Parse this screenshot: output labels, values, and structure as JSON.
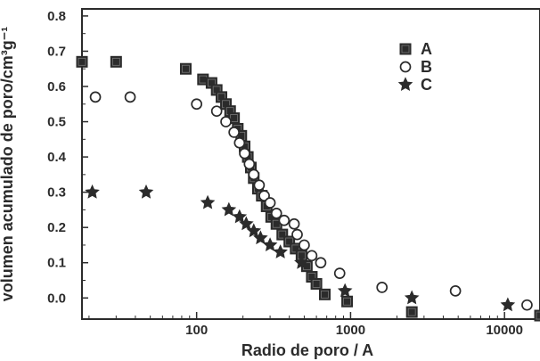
{
  "chart_data": {
    "type": "scatter",
    "xscale": "log",
    "xlim": [
      18,
      17000
    ],
    "ylim": [
      -0.06,
      0.82
    ],
    "xticks": [
      {
        "value": 100,
        "label": "100"
      },
      {
        "value": 1000,
        "label": "1000"
      },
      {
        "value": 10000,
        "label": "10000"
      }
    ],
    "yticks": [
      {
        "value": 0.0,
        "label": "0.0"
      },
      {
        "value": 0.1,
        "label": "0.1"
      },
      {
        "value": 0.2,
        "label": "0.2"
      },
      {
        "value": 0.3,
        "label": "0.3"
      },
      {
        "value": 0.4,
        "label": "0.4"
      },
      {
        "value": 0.5,
        "label": "0.5"
      },
      {
        "value": 0.6,
        "label": "0.6"
      },
      {
        "value": 0.7,
        "label": "0.7"
      },
      {
        "value": 0.8,
        "label": "0.8"
      }
    ],
    "xlabel": "Radio de poro / A",
    "ylabel": "volumen acumulado de poro/cm³g⁻¹",
    "legend_position": "top-right",
    "grid": false,
    "colors": {
      "axis": "#2b2b2b",
      "marker": "#2b2b2b",
      "marker_highlight": "#777777",
      "background": "#ffffff"
    },
    "series": [
      {
        "name": "A",
        "marker": "filled-square",
        "points": [
          [
            18,
            0.67
          ],
          [
            30,
            0.67
          ],
          [
            85,
            0.65
          ],
          [
            110,
            0.62
          ],
          [
            125,
            0.61
          ],
          [
            135,
            0.59
          ],
          [
            145,
            0.57
          ],
          [
            155,
            0.55
          ],
          [
            165,
            0.53
          ],
          [
            175,
            0.51
          ],
          [
            185,
            0.48
          ],
          [
            195,
            0.46
          ],
          [
            205,
            0.43
          ],
          [
            215,
            0.4
          ],
          [
            225,
            0.37
          ],
          [
            235,
            0.34
          ],
          [
            250,
            0.31
          ],
          [
            265,
            0.29
          ],
          [
            285,
            0.26
          ],
          [
            305,
            0.23
          ],
          [
            330,
            0.21
          ],
          [
            360,
            0.18
          ],
          [
            400,
            0.16
          ],
          [
            440,
            0.14
          ],
          [
            480,
            0.12
          ],
          [
            520,
            0.09
          ],
          [
            560,
            0.06
          ],
          [
            600,
            0.04
          ],
          [
            680,
            0.01
          ],
          [
            950,
            -0.01
          ],
          [
            2500,
            -0.04
          ],
          [
            17000,
            -0.05
          ]
        ]
      },
      {
        "name": "B",
        "marker": "open-circle",
        "points": [
          [
            22,
            0.57
          ],
          [
            37,
            0.57
          ],
          [
            100,
            0.55
          ],
          [
            135,
            0.53
          ],
          [
            155,
            0.5
          ],
          [
            175,
            0.47
          ],
          [
            190,
            0.44
          ],
          [
            205,
            0.41
          ],
          [
            220,
            0.38
          ],
          [
            235,
            0.35
          ],
          [
            255,
            0.32
          ],
          [
            275,
            0.29
          ],
          [
            300,
            0.27
          ],
          [
            330,
            0.24
          ],
          [
            370,
            0.22
          ],
          [
            430,
            0.21
          ],
          [
            450,
            0.18
          ],
          [
            500,
            0.15
          ],
          [
            560,
            0.12
          ],
          [
            640,
            0.1
          ],
          [
            850,
            0.07
          ],
          [
            1600,
            0.03
          ],
          [
            4800,
            0.02
          ],
          [
            14000,
            -0.02
          ]
        ]
      },
      {
        "name": "C",
        "marker": "star",
        "points": [
          [
            21,
            0.3
          ],
          [
            47,
            0.3
          ],
          [
            118,
            0.27
          ],
          [
            162,
            0.25
          ],
          [
            190,
            0.23
          ],
          [
            210,
            0.21
          ],
          [
            235,
            0.19
          ],
          [
            260,
            0.17
          ],
          [
            300,
            0.15
          ],
          [
            350,
            0.13
          ],
          [
            480,
            0.1
          ],
          [
            920,
            0.02
          ],
          [
            2500,
            0.0
          ],
          [
            10500,
            -0.02
          ]
        ]
      }
    ]
  }
}
